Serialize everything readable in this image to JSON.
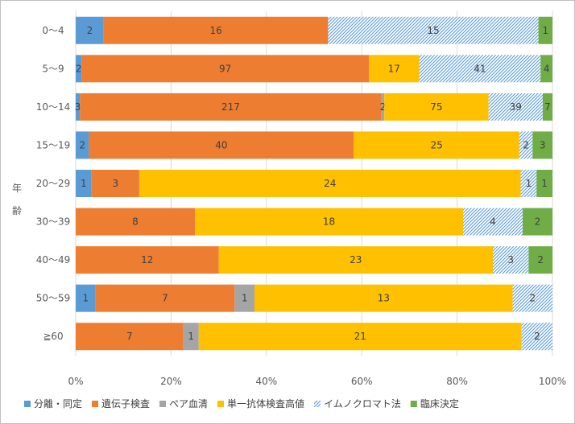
{
  "chart_data": {
    "type": "bar",
    "orientation": "horizontal",
    "stacking": "percent",
    "ylabel": "年齢",
    "categories": [
      "0～4",
      "5～9",
      "10～14",
      "15～19",
      "20～29",
      "30～39",
      "40～49",
      "50～59",
      "≧60"
    ],
    "series": [
      {
        "name": "分離・同定",
        "color": "#5B9BD5",
        "pattern": "solid",
        "values": [
          2,
          2,
          3,
          2,
          1,
          0,
          0,
          1,
          0
        ]
      },
      {
        "name": "遺伝子検査",
        "color": "#ED7D31",
        "pattern": "solid",
        "values": [
          16,
          97,
          217,
          40,
          3,
          8,
          12,
          7,
          7
        ]
      },
      {
        "name": "ペア血清",
        "color": "#A5A5A5",
        "pattern": "solid",
        "values": [
          0,
          0,
          2,
          0,
          0,
          0,
          0,
          1,
          1
        ]
      },
      {
        "name": "単一抗体検査高値",
        "color": "#FFC000",
        "pattern": "solid",
        "values": [
          0,
          17,
          75,
          25,
          24,
          18,
          23,
          13,
          21
        ]
      },
      {
        "name": "イムノクロマト法",
        "color": "#5B9BD5",
        "pattern": "hatch",
        "values": [
          15,
          41,
          39,
          2,
          1,
          4,
          3,
          2,
          2
        ]
      },
      {
        "name": "臨床決定",
        "color": "#70AD47",
        "pattern": "solid",
        "values": [
          1,
          4,
          7,
          3,
          1,
          2,
          2,
          0,
          0
        ]
      }
    ],
    "xticks": [
      "0%",
      "20%",
      "40%",
      "60%",
      "80%",
      "100%"
    ],
    "xlim": [
      0,
      100
    ],
    "grid": true,
    "legend_position": "bottom"
  }
}
